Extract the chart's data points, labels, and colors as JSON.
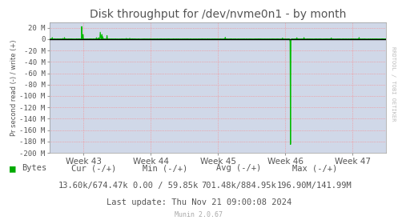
{
  "title": "Disk throughput for /dev/nvme0n1 - by month",
  "ylabel": "Pr second read (-) / write (+)",
  "background_color": "#FFFFFF",
  "plot_bg_color": "#D0D8E8",
  "grid_color": "#FF8080",
  "line_color": "#00BB00",
  "ylim": [
    -200,
    30
  ],
  "yticks": [
    20,
    0,
    -20,
    -40,
    -60,
    -80,
    -100,
    -120,
    -140,
    -160,
    -180,
    -200
  ],
  "ytick_labels": [
    "20 M",
    "0",
    "-20 M",
    "-40 M",
    "-60 M",
    "-80 M",
    "-100 M",
    "-120 M",
    "-140 M",
    "-160 M",
    "-180 M",
    "-200 M"
  ],
  "x_week_labels": [
    "Week 43",
    "Week 44",
    "Week 45",
    "Week 46",
    "Week 47"
  ],
  "legend_label": "Bytes",
  "legend_color": "#00AA00",
  "col_headers": [
    "Cur (-/+)",
    "Min (-/+)",
    "Avg (-/+)",
    "Max (-/+)"
  ],
  "col_values": [
    "13.60k/674.47k",
    "0.00 / 59.85k",
    "701.48k/884.95k",
    "196.90M/141.99M"
  ],
  "last_update": "Last update: Thu Nov 21 09:00:08 2024",
  "munin_version": "Munin 2.0.67",
  "watermark": "RRDTOOL / TOBI OETIKER",
  "title_color": "#555555",
  "tick_color": "#555555",
  "text_fontsize": 7.5,
  "title_fontsize": 10
}
